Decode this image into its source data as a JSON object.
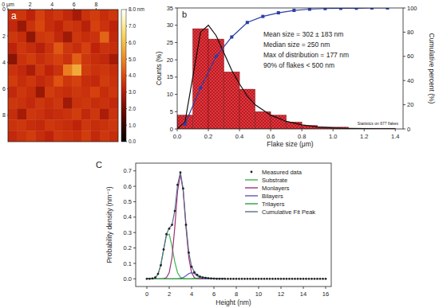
{
  "chart_data": [
    {
      "type": "heatmap",
      "panel_label": "a",
      "xlim": [
        0,
        10
      ],
      "ylim": [
        0,
        10
      ],
      "xticks": [
        {
          "value": 0,
          "label": "0 μm"
        },
        2,
        4,
        6,
        8
      ],
      "yticks": [
        0,
        2,
        4,
        6,
        8
      ],
      "cells": [
        [
          3.5,
          3.6,
          3.2,
          3.8,
          3.4,
          3.6,
          3.3,
          2.8,
          3.5,
          3.7,
          3.4,
          3.6
        ],
        [
          3.3,
          2.6,
          3.5,
          3.9,
          3.4,
          3.2,
          3.6,
          3.5,
          3.1,
          3.8,
          3.5,
          3.2
        ],
        [
          3.6,
          3.4,
          2.5,
          3.6,
          3.7,
          3.3,
          2.7,
          3.6,
          3.4,
          3.5,
          4.4,
          3.3
        ],
        [
          3.2,
          3.6,
          3.4,
          3.1,
          3.5,
          4.2,
          3.6,
          3.4,
          3.8,
          3.2,
          3.5,
          3.4
        ],
        [
          2.4,
          3.5,
          3.7,
          3.4,
          3.6,
          3.8,
          3.5,
          4.3,
          3.6,
          3.4,
          3.3,
          2.8
        ],
        [
          3.5,
          3.3,
          2.9,
          3.6,
          3.2,
          3.5,
          4.8,
          5.6,
          3.7,
          3.5,
          3.6,
          3.4
        ],
        [
          3.7,
          3.4,
          3.6,
          3.3,
          3.5,
          4.1,
          3.6,
          3.8,
          3.4,
          3.3,
          3.7,
          3.5
        ],
        [
          3.3,
          3.6,
          3.4,
          2.6,
          3.7,
          3.5,
          3.4,
          3.6,
          3.5,
          3.8,
          3.4,
          3.6
        ],
        [
          3.6,
          3.5,
          3.3,
          3.6,
          3.4,
          3.6,
          2.7,
          3.5,
          3.6,
          3.4,
          3.5,
          3.3
        ],
        [
          3.4,
          2.8,
          3.6,
          3.5,
          3.3,
          3.4,
          3.5,
          3.7,
          3.3,
          3.6,
          2.9,
          3.5
        ],
        [
          3.5,
          3.6,
          3.4,
          3.3,
          3.6,
          3.5,
          3.4,
          3.2,
          3.6,
          3.4,
          3.5,
          3.6
        ],
        [
          3.3,
          3.5,
          3.7,
          3.4,
          3.2,
          3.6,
          3.5,
          3.4,
          3.7,
          3.3,
          3.6,
          3.4
        ]
      ],
      "colorbar": {
        "range": [
          0,
          8
        ],
        "ticks": [
          {
            "value": 8,
            "label": "8.0 nm"
          },
          {
            "value": 7,
            "label": "7.0"
          },
          {
            "value": 6,
            "label": "6.0"
          },
          {
            "value": 5,
            "label": "5.0"
          },
          {
            "value": 4,
            "label": "4.0"
          },
          {
            "value": 3,
            "label": "3.0"
          },
          {
            "value": 2,
            "label": "2.0"
          },
          {
            "value": 1,
            "label": "1.0"
          },
          {
            "value": 0,
            "label": "0.0"
          }
        ]
      },
      "grid": false
    },
    {
      "type": "histogram",
      "panel_label": "b",
      "x_label": "Flake size (μm)",
      "y_label": "Counts (%)",
      "y2_label": "Cumulative percent (%)",
      "bins": [
        0,
        0.1,
        0.2,
        0.3,
        0.4,
        0.5,
        0.6,
        0.7,
        0.8,
        0.9,
        1.0,
        1.1,
        1.2,
        1.3,
        1.4
      ],
      "counts": [
        4,
        29,
        26,
        16.5,
        11.5,
        5,
        4,
        2,
        1,
        0.5,
        0.5,
        0.2,
        0.2,
        0.2
      ],
      "color": "#e8343c",
      "xlim": [
        0,
        1.45
      ],
      "xticks": [
        {
          "value": 0,
          "label": "0.0"
        },
        0.2,
        0.4,
        0.6,
        0.8,
        {
          "value": 1,
          "label": "1.0"
        },
        1.2,
        1.4
      ],
      "ylim": [
        0,
        35
      ],
      "yticks": [
        0,
        5,
        10,
        15,
        20,
        25,
        30,
        35
      ],
      "y2lim": [
        0,
        100
      ],
      "y2ticks": [
        0,
        20,
        40,
        60,
        80,
        100
      ],
      "series": [
        {
          "type": "line",
          "color": "#111111",
          "line_style": "solid",
          "x": [
            0,
            0.05,
            0.1,
            0.15,
            0.2,
            0.25,
            0.3,
            0.35,
            0.4,
            0.45,
            0.5,
            0.6,
            0.7,
            0.8,
            0.9,
            1.0,
            1.1,
            1.2,
            1.3,
            1.4
          ],
          "values": [
            0,
            2,
            15,
            28,
            30,
            27,
            22,
            17,
            13,
            9.5,
            7,
            4,
            2.2,
            1.2,
            0.6,
            0.3,
            0.15,
            0.08,
            0.04,
            0.02
          ]
        },
        {
          "type": "line",
          "axis": "y2",
          "color": "#2b3ea8",
          "marker": "square",
          "line_style": "solid",
          "x": [
            0.05,
            0.15,
            0.25,
            0.35,
            0.45,
            0.55,
            0.65,
            0.75,
            0.85,
            0.95,
            1.05,
            1.15,
            1.25,
            1.35
          ],
          "values": [
            4,
            34,
            60,
            76,
            88,
            93,
            96,
            98,
            99,
            99.5,
            99.7,
            99.8,
            100,
            100
          ]
        }
      ],
      "annotations": [
        "Mean size = 302 ± 183 nm",
        "Median size = 250 nm",
        "Max of distribution = 177 nm",
        "90% of flakes < 500 nm"
      ],
      "footnote": "Statistics on 677 flakes",
      "grid": false
    },
    {
      "type": "line",
      "panel_label": "C",
      "x_label": "Height (nm)",
      "y_label": "Probability density (nm⁻¹)",
      "xlim": [
        -1,
        16.5
      ],
      "xticks": [
        0,
        2,
        4,
        6,
        8,
        10,
        12,
        14,
        16
      ],
      "ylim": [
        -0.05,
        0.75
      ],
      "yticks": [
        {
          "value": 0,
          "label": "0.0"
        },
        0.1,
        0.2,
        0.3,
        0.4,
        0.5,
        0.6,
        0.7
      ],
      "legend": "upper right",
      "grid": false,
      "series": [
        {
          "name": "Measured data",
          "type": "scatter",
          "marker": "circle",
          "color": "#222222",
          "x": [
            0,
            0.25,
            0.5,
            0.75,
            1,
            1.25,
            1.5,
            1.75,
            2,
            2.25,
            2.5,
            2.75,
            3,
            3.25,
            3.5,
            3.75,
            4,
            4.25,
            4.5,
            4.75,
            5,
            5.25,
            5.5,
            5.75,
            6,
            6.25,
            6.5,
            6.75,
            7,
            7.25,
            7.5,
            7.75,
            8,
            8.25,
            8.5,
            8.75,
            9,
            9.25,
            9.5,
            9.75,
            10,
            10.25,
            10.5,
            10.75,
            11,
            11.25,
            11.5,
            11.75,
            12,
            12.25,
            12.5,
            12.75,
            13,
            13.25,
            13.5,
            13.75,
            14,
            14.25,
            14.5,
            14.75,
            15,
            15.25,
            15.5,
            15.75,
            16
          ],
          "values": [
            0,
            0,
            0.002,
            0.008,
            0.032,
            0.088,
            0.19,
            0.29,
            0.325,
            0.35,
            0.44,
            0.61,
            0.69,
            0.585,
            0.35,
            0.17,
            0.078,
            0.042,
            0.026,
            0.014,
            0.009,
            0.006,
            0.004,
            0.002,
            0.001,
            0,
            0,
            0,
            0,
            0,
            0,
            0,
            0,
            0,
            0,
            0,
            0,
            0,
            0,
            0,
            0,
            0,
            0,
            0,
            0,
            0,
            0,
            0,
            0,
            0,
            0,
            0,
            0,
            0,
            0,
            0,
            0,
            0,
            0,
            0,
            0,
            0,
            0,
            0,
            0
          ]
        },
        {
          "name": "Substrate",
          "type": "line",
          "color": "#3cb44b",
          "line_style": "solid",
          "x": [
            0,
            0.25,
            0.5,
            0.75,
            1,
            1.25,
            1.5,
            1.75,
            2,
            2.25,
            2.5,
            2.75,
            3,
            3.25,
            3.5,
            3.75,
            4,
            4.25,
            4.5,
            4.75,
            5,
            5.25,
            5.5,
            5.75,
            6,
            6.25,
            6.5,
            6.75,
            7
          ],
          "values": [
            0,
            0,
            0.001,
            0.007,
            0.03,
            0.09,
            0.19,
            0.28,
            0.29,
            0.21,
            0.108,
            0.039,
            0.01,
            0.002,
            0,
            0,
            0,
            0,
            0,
            0,
            0,
            0,
            0,
            0,
            0,
            0,
            0,
            0,
            0
          ]
        },
        {
          "name": "Monlayers",
          "type": "line",
          "color": "#a0307a",
          "line_style": "solid",
          "x": [
            0,
            0.25,
            0.5,
            0.75,
            1,
            1.25,
            1.5,
            1.75,
            2,
            2.25,
            2.5,
            2.75,
            3,
            3.25,
            3.5,
            3.75,
            4,
            4.25,
            4.5,
            4.75,
            5,
            5.25,
            5.5,
            5.75,
            6,
            6.25,
            6.5,
            6.75,
            7
          ],
          "values": [
            0,
            0,
            0,
            0,
            0,
            0,
            0.001,
            0.008,
            0.04,
            0.138,
            0.335,
            0.57,
            0.68,
            0.57,
            0.335,
            0.138,
            0.04,
            0.008,
            0.001,
            0,
            0,
            0,
            0,
            0,
            0,
            0,
            0,
            0,
            0
          ]
        },
        {
          "name": "Bilayers",
          "type": "line",
          "color": "#5a5ab4",
          "line_style": "solid",
          "x": [
            0,
            0.25,
            0.5,
            0.75,
            1,
            1.25,
            1.5,
            1.75,
            2,
            2.25,
            2.5,
            2.75,
            3,
            3.25,
            3.5,
            3.75,
            4,
            4.25,
            4.5,
            4.75,
            5,
            5.25,
            5.5,
            5.75,
            6,
            6.25,
            6.5,
            6.75,
            7
          ],
          "values": [
            0,
            0,
            0,
            0,
            0,
            0,
            0,
            0,
            0,
            0,
            0,
            0,
            0.002,
            0.008,
            0.02,
            0.034,
            0.04,
            0.034,
            0.02,
            0.008,
            0.002,
            0,
            0,
            0,
            0,
            0,
            0,
            0,
            0
          ]
        },
        {
          "name": "Trilayers",
          "type": "line",
          "color": "#2e9e40",
          "line_style": "solid",
          "x": [
            0,
            0.25,
            0.5,
            0.75,
            1,
            1.25,
            1.5,
            1.75,
            2,
            2.25,
            2.5,
            2.75,
            3,
            3.25,
            3.5,
            3.75,
            4,
            4.25,
            4.5,
            4.75,
            5,
            5.25,
            5.5,
            5.75,
            6,
            6.25,
            6.5,
            6.75,
            7
          ],
          "values": [
            0,
            0,
            0,
            0,
            0,
            0,
            0,
            0,
            0,
            0,
            0,
            0,
            0,
            0,
            0,
            0,
            0,
            0.002,
            0.004,
            0.007,
            0.008,
            0.007,
            0.004,
            0.002,
            0,
            0,
            0,
            0,
            0
          ]
        },
        {
          "name": "Cumulative Fit Peak",
          "type": "line",
          "color": "#5a6f8a",
          "line_style": "solid",
          "x": [
            0,
            0.25,
            0.5,
            0.75,
            1,
            1.25,
            1.5,
            1.75,
            2,
            2.25,
            2.5,
            2.75,
            3,
            3.25,
            3.5,
            3.75,
            4,
            4.25,
            4.5,
            4.75,
            5,
            5.25,
            5.5,
            5.75,
            6,
            6.25,
            6.5,
            6.75,
            7
          ],
          "values": [
            0,
            0,
            0.001,
            0.007,
            0.03,
            0.09,
            0.191,
            0.288,
            0.33,
            0.348,
            0.443,
            0.609,
            0.692,
            0.58,
            0.355,
            0.172,
            0.08,
            0.044,
            0.025,
            0.015,
            0.01,
            0.007,
            0.004,
            0.002,
            0,
            0,
            0,
            0,
            0
          ]
        }
      ]
    }
  ]
}
